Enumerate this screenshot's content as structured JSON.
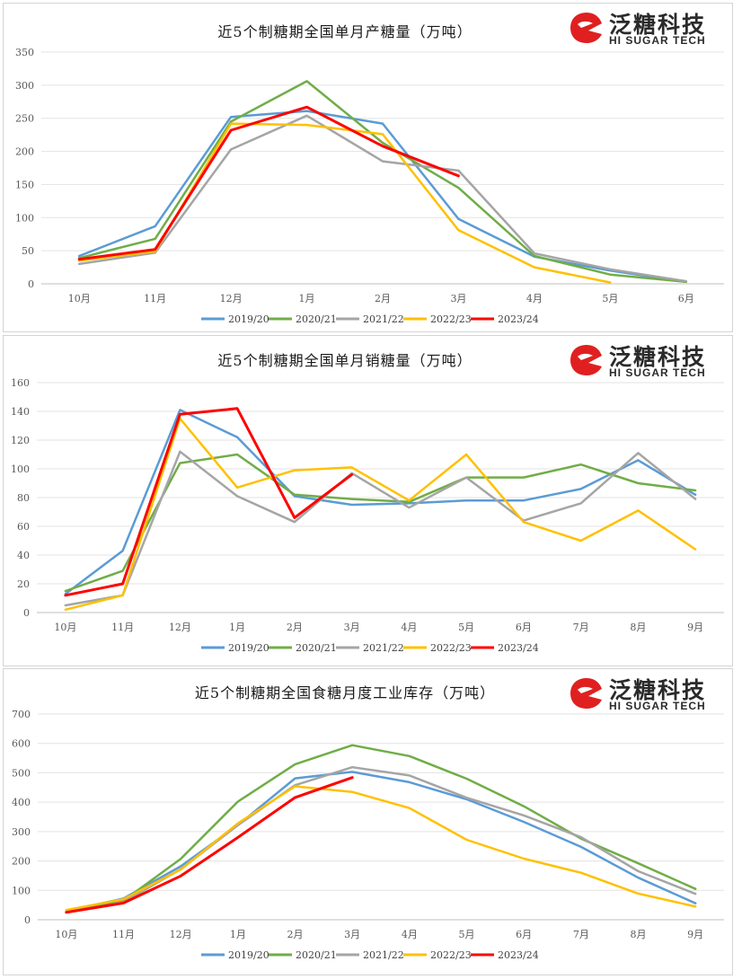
{
  "brand": {
    "name_cn": "泛糖科技",
    "name_en": "HI SUGAR TECH",
    "accent": "#e02020"
  },
  "series_colors": {
    "2019/20": "#5b9bd5",
    "2020/21": "#70ad47",
    "2021/22": "#a5a5a5",
    "2022/23": "#ffc000",
    "2023/24": "#ff0000"
  },
  "chart_data": [
    {
      "type": "line",
      "title": "近5个制糖期全国单月产糖量（万吨）",
      "categories": [
        "10月",
        "11月",
        "12月",
        "1月",
        "2月",
        "3月",
        "4月",
        "5月",
        "6月"
      ],
      "ylim": [
        0,
        350
      ],
      "yticks": [
        0,
        50,
        100,
        150,
        200,
        250,
        300,
        350
      ],
      "grid": true,
      "legend_position": "bottom",
      "series": [
        {
          "name": "2019/20",
          "values": [
            42,
            87,
            252,
            261,
            242,
            98,
            41,
            20,
            3
          ]
        },
        {
          "name": "2020/21",
          "values": [
            39,
            68,
            245,
            306,
            213,
            145,
            42,
            14,
            3
          ]
        },
        {
          "name": "2021/22",
          "values": [
            30,
            47,
            203,
            254,
            185,
            171,
            46,
            22,
            4
          ]
        },
        {
          "name": "2022/23",
          "values": [
            35,
            49,
            242,
            240,
            226,
            81,
            25,
            2,
            null
          ]
        },
        {
          "name": "2023/24",
          "values": [
            37,
            52,
            232,
            267,
            208,
            163,
            null,
            null,
            null
          ]
        }
      ]
    },
    {
      "type": "line",
      "title": "近5个制糖期全国单月销糖量（万吨）",
      "categories": [
        "10月",
        "11月",
        "12月",
        "1月",
        "2月",
        "3月",
        "4月",
        "5月",
        "6月",
        "7月",
        "8月",
        "9月"
      ],
      "ylim": [
        0,
        160
      ],
      "yticks": [
        0,
        20,
        40,
        60,
        80,
        100,
        120,
        140,
        160
      ],
      "grid": true,
      "legend_position": "bottom",
      "series": [
        {
          "name": "2019/20",
          "values": [
            13,
            43,
            141,
            122,
            81,
            75,
            76,
            78,
            78,
            86,
            106,
            82
          ]
        },
        {
          "name": "2020/21",
          "values": [
            15,
            29,
            104,
            110,
            82,
            79,
            77,
            94,
            94,
            103,
            90,
            85
          ]
        },
        {
          "name": "2021/22",
          "values": [
            5,
            12,
            112,
            81,
            63,
            97,
            73,
            94,
            64,
            76,
            111,
            79
          ]
        },
        {
          "name": "2022/23",
          "values": [
            2,
            12,
            135,
            87,
            99,
            101,
            78,
            110,
            63,
            50,
            71,
            44
          ]
        },
        {
          "name": "2023/24",
          "values": [
            12,
            20,
            138,
            142,
            66,
            96,
            null,
            null,
            null,
            null,
            null,
            null
          ]
        }
      ]
    },
    {
      "type": "line",
      "title": "近5个制糖期全国食糖月度工业库存（万吨）",
      "categories": [
        "10月",
        "11月",
        "12月",
        "1月",
        "2月",
        "3月",
        "4月",
        "5月",
        "6月",
        "7月",
        "8月",
        "9月"
      ],
      "ylim": [
        0,
        700
      ],
      "yticks": [
        0,
        100,
        200,
        300,
        400,
        500,
        600,
        700
      ],
      "grid": true,
      "legend_position": "bottom",
      "series": [
        {
          "name": "2019/20",
          "values": [
            29,
            72,
            182,
            322,
            481,
            503,
            468,
            410,
            333,
            248,
            143,
            56
          ]
        },
        {
          "name": "2020/21",
          "values": [
            26,
            65,
            207,
            402,
            529,
            594,
            557,
            480,
            386,
            276,
            192,
            105
          ]
        },
        {
          "name": "2021/22",
          "values": [
            25,
            60,
            172,
            322,
            458,
            519,
            491,
            415,
            355,
            281,
            165,
            88
          ]
        },
        {
          "name": "2022/23",
          "values": [
            33,
            70,
            171,
            328,
            454,
            435,
            380,
            272,
            208,
            160,
            89,
            45
          ]
        },
        {
          "name": "2023/24",
          "values": [
            25,
            57,
            149,
            280,
            416,
            484,
            null,
            null,
            null,
            null,
            null,
            null
          ]
        }
      ]
    }
  ]
}
